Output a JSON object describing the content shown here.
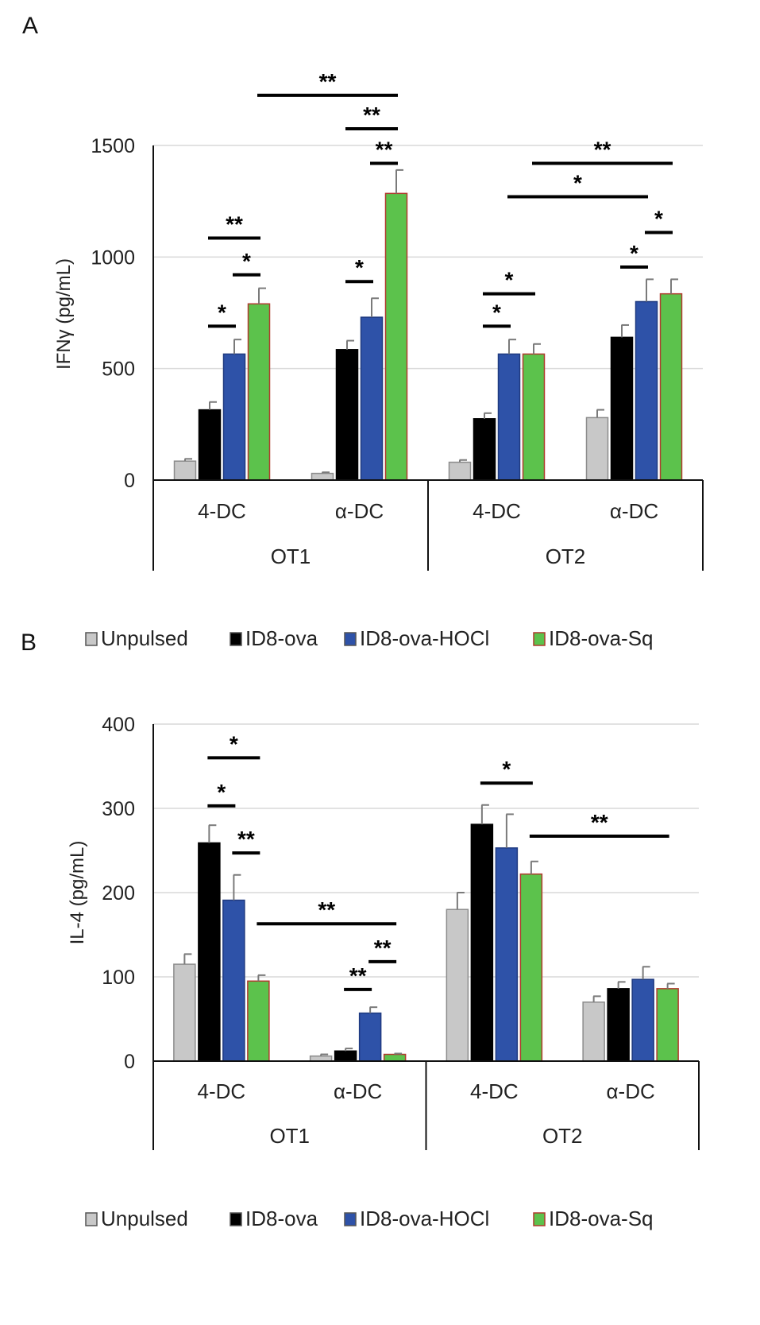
{
  "panel_labels": [
    "A",
    "B"
  ],
  "legend": [
    {
      "name": "Unpulsed",
      "color": "#c8c8c8"
    },
    {
      "name": "ID8-ova",
      "color": "#000000"
    },
    {
      "name": "ID8-ova-HOCl",
      "color": "#2e52a8"
    },
    {
      "name": "ID8-ova-Sq",
      "color": "#5cc24c",
      "edge": "#b03a2e"
    }
  ],
  "chart_data": [
    {
      "type": "bar",
      "panel": "A",
      "ylabel": "IFNγ (pg/mL)",
      "xlabel": "",
      "ylim": [
        0,
        1500
      ],
      "yticks": [
        0,
        500,
        1000,
        1500
      ],
      "grid": true,
      "categories": [
        "4-DC",
        "α-DC",
        "4-DC",
        "α-DC"
      ],
      "groups": [
        {
          "label": "OT1",
          "span": [
            0,
            1
          ]
        },
        {
          "label": "OT2",
          "span": [
            2,
            3
          ]
        }
      ],
      "series": [
        {
          "name": "Unpulsed",
          "values": [
            85,
            30,
            80,
            280
          ],
          "errors": [
            10,
            5,
            10,
            35
          ]
        },
        {
          "name": "ID8-ova",
          "values": [
            315,
            585,
            275,
            640
          ],
          "errors": [
            35,
            40,
            25,
            55
          ]
        },
        {
          "name": "ID8-ova-HOCl",
          "values": [
            565,
            730,
            565,
            800
          ],
          "errors": [
            65,
            85,
            65,
            100
          ]
        },
        {
          "name": "ID8-ova-Sq",
          "values": [
            790,
            1285,
            565,
            835
          ],
          "errors": [
            70,
            105,
            45,
            65
          ]
        }
      ],
      "annotations": [
        {
          "label": "*",
          "cat1": 0,
          "s1": 1,
          "cat2": 0,
          "s2": 2,
          "level": 690
        },
        {
          "label": "*",
          "cat1": 0,
          "s1": 2,
          "cat2": 0,
          "s2": 3,
          "level": 920
        },
        {
          "label": "**",
          "cat1": 0,
          "s1": 1,
          "cat2": 0,
          "s2": 3,
          "level": 1085
        },
        {
          "label": "*",
          "cat1": 1,
          "s1": 1,
          "cat2": 1,
          "s2": 2,
          "level": 890
        },
        {
          "label": "**",
          "cat1": 1,
          "s1": 2,
          "cat2": 1,
          "s2": 3,
          "level": 1420
        },
        {
          "label": "**",
          "cat1": 1,
          "s1": 1,
          "cat2": 1,
          "s2": 3,
          "level": 1575
        },
        {
          "label": "**",
          "cat1": 0,
          "s1": 3,
          "cat2": 1,
          "s2": 3,
          "level": 1725
        },
        {
          "label": "*",
          "cat1": 2,
          "s1": 1,
          "cat2": 2,
          "s2": 2,
          "level": 690
        },
        {
          "label": "*",
          "cat1": 2,
          "s1": 1,
          "cat2": 2,
          "s2": 3,
          "level": 835
        },
        {
          "label": "*",
          "cat1": 3,
          "s1": 1,
          "cat2": 3,
          "s2": 2,
          "level": 955
        },
        {
          "label": "*",
          "cat1": 3,
          "s1": 2,
          "cat2": 3,
          "s2": 3,
          "level": 1110
        },
        {
          "label": "*",
          "cat1": 2,
          "s1": 2,
          "cat2": 3,
          "s2": 2,
          "level": 1270
        },
        {
          "label": "**",
          "cat1": 2,
          "s1": 3,
          "cat2": 3,
          "s2": 3,
          "level": 1420
        }
      ]
    },
    {
      "type": "bar",
      "panel": "B",
      "ylabel": "IL-4 (pg/mL)",
      "xlabel": "",
      "ylim": [
        0,
        400
      ],
      "yticks": [
        0,
        100,
        200,
        300,
        400
      ],
      "grid": true,
      "categories": [
        "4-DC",
        "α-DC",
        "4-DC",
        "α-DC"
      ],
      "groups": [
        {
          "label": "OT1",
          "span": [
            0,
            1
          ]
        },
        {
          "label": "OT2",
          "span": [
            2,
            3
          ]
        }
      ],
      "series": [
        {
          "name": "Unpulsed",
          "values": [
            115,
            6,
            180,
            70
          ],
          "errors": [
            12,
            2,
            20,
            7
          ]
        },
        {
          "name": "ID8-ova",
          "values": [
            259,
            12,
            281,
            86
          ],
          "errors": [
            21,
            3,
            23,
            8
          ]
        },
        {
          "name": "ID8-ova-HOCl",
          "values": [
            191,
            57,
            253,
            97
          ],
          "errors": [
            30,
            7,
            40,
            15
          ]
        },
        {
          "name": "ID8-ova-Sq",
          "values": [
            95,
            8,
            222,
            86
          ],
          "errors": [
            7,
            1,
            15,
            6
          ]
        }
      ],
      "annotations": [
        {
          "label": "*",
          "cat1": 0,
          "s1": 1,
          "cat2": 0,
          "s2": 2,
          "level": 303
        },
        {
          "label": "**",
          "cat1": 0,
          "s1": 2,
          "cat2": 0,
          "s2": 3,
          "level": 247
        },
        {
          "label": "*",
          "cat1": 0,
          "s1": 1,
          "cat2": 0,
          "s2": 3,
          "level": 360
        },
        {
          "label": "**",
          "cat1": 0,
          "s1": 3,
          "cat2": 1,
          "s2": 3,
          "level": 163
        },
        {
          "label": "**",
          "cat1": 1,
          "s1": 1,
          "cat2": 1,
          "s2": 2,
          "level": 85
        },
        {
          "label": "**",
          "cat1": 1,
          "s1": 2,
          "cat2": 1,
          "s2": 3,
          "level": 118
        },
        {
          "label": "*",
          "cat1": 2,
          "s1": 1,
          "cat2": 2,
          "s2": 3,
          "level": 330
        },
        {
          "label": "**",
          "cat1": 2,
          "s1": 3,
          "cat2": 3,
          "s2": 3,
          "level": 267
        }
      ]
    }
  ]
}
